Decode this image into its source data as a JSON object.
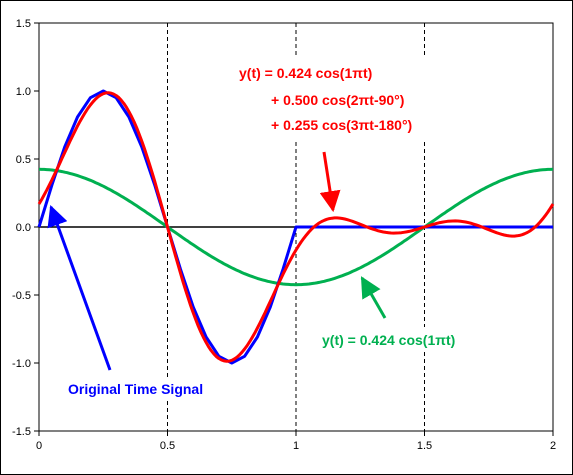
{
  "chart_data": {
    "type": "line",
    "title": "",
    "xlabel": "",
    "ylabel": "",
    "xlim": [
      0,
      2
    ],
    "ylim": [
      -1.5,
      1.5
    ],
    "x_ticks": [
      "0",
      "0.5",
      "1",
      "1.5",
      "2"
    ],
    "y_ticks": [
      "1.5",
      "1.0",
      "0.5",
      "0.0",
      "-0.5",
      "-1.0",
      "-1.5"
    ],
    "grid": "dashed vertical at x = 0.5, 1, 1.5; solid zero line",
    "colors": {
      "original": "#0000ff",
      "three_term": "#ff0000",
      "one_term": "#00b050",
      "zero_line": "#000000",
      "grid": "#000000"
    },
    "series": [
      {
        "key": "original",
        "label": "Original Time Signal",
        "x": [
          0,
          0.05,
          0.1,
          0.15,
          0.2,
          0.25,
          0.3,
          0.35,
          0.4,
          0.45,
          0.5,
          0.55,
          0.6,
          0.65,
          0.7,
          0.75,
          0.8,
          0.85,
          0.9,
          0.95,
          1.0,
          1.0,
          2.0
        ],
        "y": [
          0,
          0.309,
          0.588,
          0.809,
          0.951,
          1.0,
          0.951,
          0.809,
          0.588,
          0.309,
          0,
          -0.309,
          -0.588,
          -0.809,
          -0.951,
          -1.0,
          -0.951,
          -0.809,
          -0.588,
          -0.309,
          0,
          0,
          0
        ]
      },
      {
        "key": "three_term",
        "label": [
          "y(t) = 0.424 cos(1πt)",
          "+ 0.500 cos(2πt-90°)",
          "+ 0.255 cos(3πt-180°)"
        ],
        "formula": {
          "a1": 0.424,
          "a2": 0.5,
          "phi2_deg": -90,
          "a3": 0.255,
          "phi3_deg": -180
        }
      },
      {
        "key": "one_term",
        "label": "y(t) = 0.424 cos(1πt)",
        "formula": {
          "a1": 0.424
        }
      }
    ]
  }
}
